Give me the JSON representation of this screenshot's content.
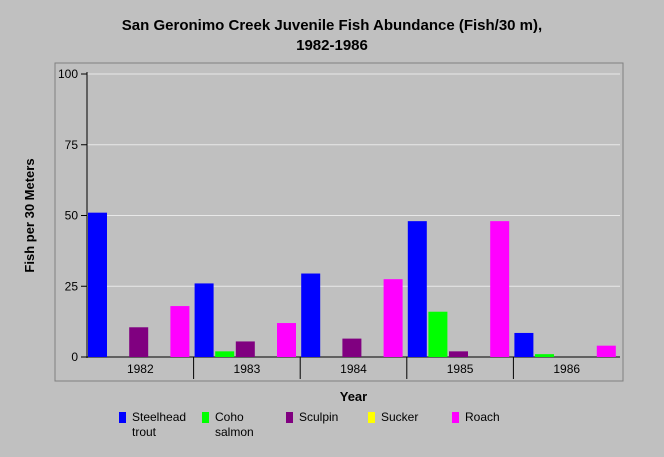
{
  "chart_data": {
    "type": "bar",
    "title_line1": "San Geronimo Creek Juvenile Fish Abundance (Fish/30 m),",
    "title_line2": "1982-1986",
    "xlabel": "Year",
    "ylabel": "Fish per 30 Meters",
    "ylim": [
      0,
      100
    ],
    "yticks": [
      "0",
      "25",
      "50",
      "75",
      "100"
    ],
    "grid": true,
    "legend_placement": "bottom",
    "categories": [
      "1982",
      "1983",
      "1984",
      "1985",
      "1986"
    ],
    "series": [
      {
        "name": "Steelhead\ntrout",
        "color": "#0000ff",
        "values": [
          51,
          26,
          29.5,
          48,
          8.5
        ]
      },
      {
        "name": "Coho\nsalmon",
        "color": "#00ff00",
        "values": [
          0,
          2,
          0,
          16,
          1
        ]
      },
      {
        "name": "Sculpin",
        "color": "#800080",
        "values": [
          10.5,
          5.5,
          6.5,
          2,
          0
        ]
      },
      {
        "name": "Sucker",
        "color": "#ffff00",
        "values": [
          0,
          0,
          0,
          0,
          0
        ]
      },
      {
        "name": "Roach",
        "color": "#ff00ff",
        "values": [
          18,
          12,
          27.5,
          48,
          4
        ]
      }
    ]
  }
}
